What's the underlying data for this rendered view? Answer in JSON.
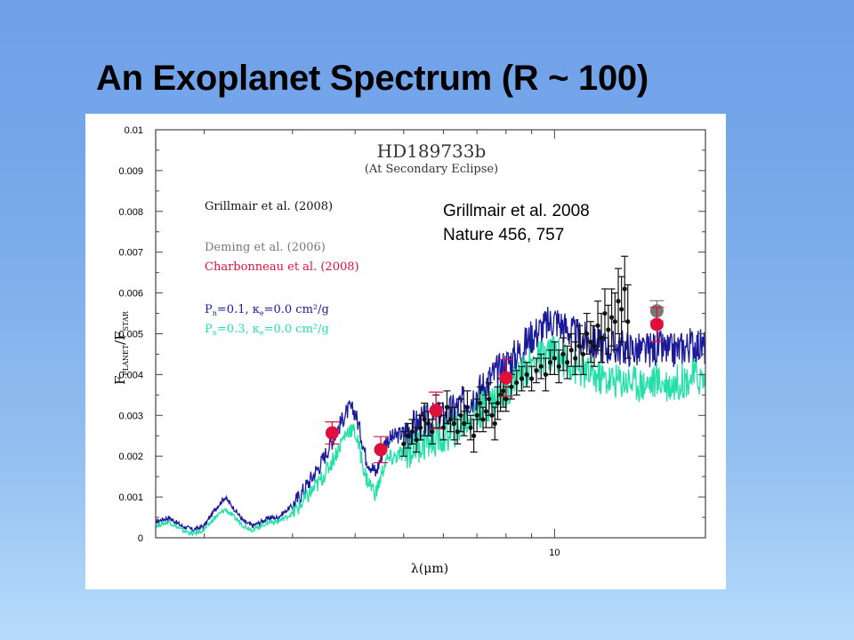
{
  "slide": {
    "title": "An Exoplanet Spectrum (R ~ 100)",
    "citation_line1": "Grillmair et al. 2008",
    "citation_line2": "Nature 456, 757"
  },
  "chart_data": {
    "type": "scatter",
    "title": "HD189733b",
    "subtitle": "(At Secondary Eclipse)",
    "xlabel": "λ(μm)",
    "ylabel": "F_PLANET/F_STAR",
    "ylabel_main": "F",
    "ylabel_sub1": "PLANET",
    "ylabel_sub2": "STAR",
    "xscale": "log",
    "xlim": [
      1.6,
      20
    ],
    "ylim": [
      0,
      0.01
    ],
    "x_major_ticks": [
      10
    ],
    "x_major_tick_labels": [
      "10"
    ],
    "x_minor_ticks": [
      2,
      3,
      4,
      5,
      6,
      7,
      8,
      9,
      20
    ],
    "y_ticks": [
      0,
      0.001,
      0.002,
      0.003,
      0.004,
      0.005,
      0.006,
      0.007,
      0.008,
      0.009,
      0.01
    ],
    "y_tick_labels": [
      "0",
      "0.001",
      "0.002",
      "0.003",
      "0.004",
      "0.005",
      "0.006",
      "0.007",
      "0.008",
      "0.009",
      "0.01"
    ],
    "grid": false,
    "legend_placement": "top-left",
    "legend": [
      {
        "label": "Grillmair et al. (2008)",
        "color": "#111111"
      },
      {
        "label": "Deming et al. (2006)",
        "color": "#777777"
      },
      {
        "label": "Charbonneau et al. (2008)",
        "color": "#e0103c"
      },
      {
        "label_main": "P",
        "label_sub": "n",
        "label_rest": "=0.1, κ",
        "label_sub2": "e",
        "label_tail": "=0.0 cm²/g",
        "color": "#1a1a9c"
      },
      {
        "label_main": "P",
        "label_sub": "n",
        "label_rest": "=0.3, κ",
        "label_sub2": "e",
        "label_tail": "=0.0 cm²/g",
        "color": "#22e0a8"
      }
    ],
    "series": [
      {
        "name": "Pn=0.1, κe=0.0 cm²/g (model)",
        "kind": "line",
        "color": "#1a1a9c",
        "x": [
          1.6,
          1.7,
          1.8,
          1.9,
          2.0,
          2.1,
          2.2,
          2.3,
          2.4,
          2.5,
          2.6,
          2.7,
          2.8,
          3.0,
          3.2,
          3.4,
          3.6,
          3.8,
          3.9,
          4.0,
          4.1,
          4.2,
          4.4,
          4.5,
          4.6,
          4.8,
          5.0,
          5.3,
          5.6,
          6.0,
          6.5,
          7.0,
          7.5,
          8.0,
          8.5,
          9.0,
          9.5,
          10.0,
          10.5,
          11.0,
          12.0,
          13.0,
          14.0,
          15.0,
          16.0,
          17.0,
          18.0,
          19.0,
          20.0
        ],
        "y": [
          0.0004,
          0.0005,
          0.0003,
          0.0002,
          0.0003,
          0.0007,
          0.001,
          0.0007,
          0.0004,
          0.0003,
          0.0004,
          0.0005,
          0.0005,
          0.0008,
          0.0013,
          0.0018,
          0.0024,
          0.003,
          0.0032,
          0.0031,
          0.0026,
          0.002,
          0.0016,
          0.002,
          0.0024,
          0.0025,
          0.0026,
          0.0028,
          0.0029,
          0.003,
          0.0033,
          0.0036,
          0.004,
          0.0043,
          0.0046,
          0.005,
          0.0052,
          0.0054,
          0.0052,
          0.005,
          0.0048,
          0.0047,
          0.0047,
          0.0046,
          0.0047,
          0.0046,
          0.0047,
          0.0048,
          0.0047
        ]
      },
      {
        "name": "Pn=0.3, κe=0.0 cm²/g (model)",
        "kind": "line",
        "color": "#22e0a8",
        "x": [
          1.6,
          1.7,
          1.8,
          1.9,
          2.0,
          2.1,
          2.2,
          2.3,
          2.4,
          2.5,
          2.6,
          2.7,
          2.8,
          3.0,
          3.2,
          3.4,
          3.6,
          3.8,
          3.9,
          4.0,
          4.1,
          4.2,
          4.4,
          4.5,
          4.6,
          4.8,
          5.0,
          5.3,
          5.6,
          6.0,
          6.5,
          7.0,
          7.5,
          8.0,
          8.5,
          9.0,
          9.5,
          10.0,
          10.5,
          11.0,
          12.0,
          13.0,
          14.0,
          15.0,
          16.0,
          17.0,
          18.0,
          19.0,
          20.0
        ],
        "y": [
          0.0003,
          0.0004,
          0.0002,
          0.0001,
          0.0002,
          0.0005,
          0.0007,
          0.0005,
          0.0003,
          0.0002,
          0.0003,
          0.0004,
          0.0004,
          0.0006,
          0.001,
          0.0014,
          0.0019,
          0.0025,
          0.0027,
          0.0026,
          0.0021,
          0.0015,
          0.0011,
          0.0015,
          0.0019,
          0.002,
          0.0021,
          0.0023,
          0.0024,
          0.0025,
          0.0028,
          0.0031,
          0.0034,
          0.0037,
          0.004,
          0.0043,
          0.0045,
          0.0046,
          0.0044,
          0.0042,
          0.004,
          0.0039,
          0.0039,
          0.0038,
          0.0039,
          0.0038,
          0.0039,
          0.004,
          0.0039
        ]
      },
      {
        "name": "Grillmair et al. (2008)",
        "kind": "errorbar",
        "color": "#111111",
        "x": [
          5.0,
          5.1,
          5.2,
          5.3,
          5.4,
          5.5,
          5.6,
          5.7,
          5.8,
          5.9,
          6.0,
          6.1,
          6.2,
          6.3,
          6.4,
          6.5,
          6.6,
          6.7,
          6.8,
          6.9,
          7.0,
          7.1,
          7.2,
          7.3,
          7.4,
          7.5,
          7.6,
          7.7,
          7.8,
          7.9,
          8.0,
          8.2,
          8.4,
          8.6,
          8.8,
          9.0,
          9.2,
          9.4,
          9.6,
          9.8,
          10.0,
          10.2,
          10.4,
          10.6,
          10.8,
          11.0,
          11.2,
          11.4,
          11.6,
          11.8,
          12.0,
          12.2,
          12.4,
          12.6,
          12.8,
          13.0,
          13.2,
          13.4,
          13.6,
          13.8,
          14.0
        ],
        "y": [
          0.0023,
          0.0025,
          0.0026,
          0.0024,
          0.0027,
          0.0029,
          0.0028,
          0.0026,
          0.0031,
          0.003,
          0.0027,
          0.0032,
          0.0029,
          0.0028,
          0.0026,
          0.003,
          0.0028,
          0.0032,
          0.0027,
          0.0025,
          0.003,
          0.0033,
          0.0029,
          0.0031,
          0.0034,
          0.003,
          0.0028,
          0.0033,
          0.0035,
          0.0036,
          0.0034,
          0.0037,
          0.0038,
          0.0039,
          0.004,
          0.0039,
          0.0041,
          0.0042,
          0.004,
          0.0043,
          0.0044,
          0.0042,
          0.0045,
          0.0043,
          0.0046,
          0.0044,
          0.0047,
          0.0045,
          0.005,
          0.0048,
          0.0047,
          0.0052,
          0.0049,
          0.0055,
          0.0051,
          0.0054,
          0.0053,
          0.0058,
          0.0056,
          0.0061,
          0.0053
        ],
        "yerr": [
          0.0003,
          0.0003,
          0.0003,
          0.0003,
          0.0003,
          0.0004,
          0.0003,
          0.0003,
          0.0004,
          0.0003,
          0.0003,
          0.0004,
          0.0003,
          0.0004,
          0.0003,
          0.0004,
          0.0003,
          0.0004,
          0.0003,
          0.0004,
          0.0004,
          0.0004,
          0.0003,
          0.0004,
          0.0004,
          0.0003,
          0.0004,
          0.0004,
          0.0004,
          0.0004,
          0.0003,
          0.0003,
          0.0003,
          0.0003,
          0.0003,
          0.0003,
          0.0003,
          0.0003,
          0.0004,
          0.0003,
          0.0004,
          0.0004,
          0.0004,
          0.0004,
          0.0004,
          0.0004,
          0.0005,
          0.0005,
          0.0005,
          0.0005,
          0.0005,
          0.0006,
          0.0006,
          0.0006,
          0.0006,
          0.0007,
          0.0007,
          0.0008,
          0.0008,
          0.0008,
          0.0009
        ]
      },
      {
        "name": "Deming et al. (2006)",
        "kind": "errorbar",
        "color": "#777777",
        "x": [
          16.0
        ],
        "y": [
          0.00556
        ],
        "yerr": [
          0.00025
        ]
      },
      {
        "name": "Charbonneau et al. (2008)",
        "kind": "errorbar",
        "color": "#e0103c",
        "x": [
          3.6,
          4.5,
          5.8,
          8.0,
          16.0
        ],
        "y": [
          0.00257,
          0.00216,
          0.00312,
          0.00392,
          0.00523
        ],
        "yerr": [
          0.00027,
          0.00032,
          0.00045,
          0.00045,
          0.00042
        ]
      }
    ]
  }
}
